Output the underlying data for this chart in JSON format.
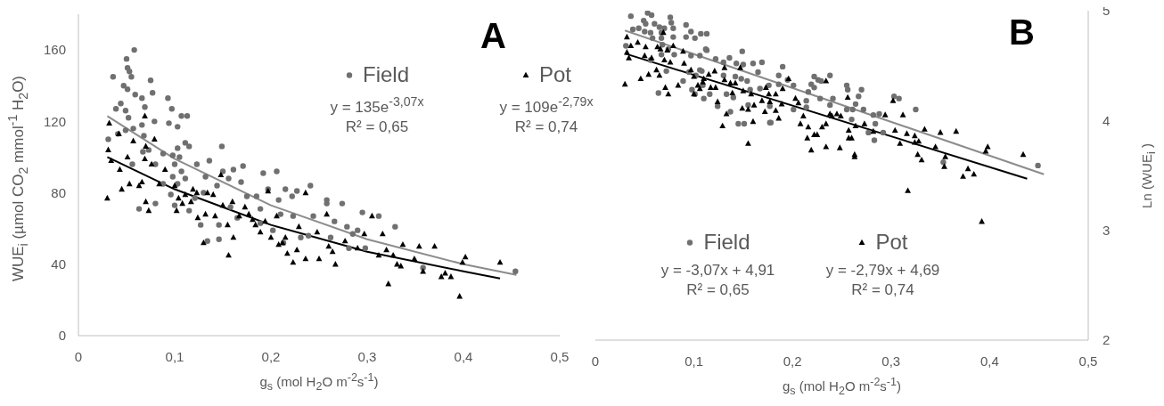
{
  "chart_data": [
    {
      "type": "scatter",
      "title": "A",
      "xlabel": "g$_{s}$ (mol H$_{2}$O m$^{-2}$s$^{-1}$)",
      "ylabel": "WUE$_{i}$ (µmol CO$_{2}$ mmol$^{-1}$ H$_{2}$O)",
      "xlim": [
        0,
        0.5
      ],
      "xticks": [
        0,
        {
          "value": 0.1,
          "label": "0,1"
        },
        {
          "value": 0.2,
          "label": "0,2"
        },
        {
          "value": 0.3,
          "label": "0,3"
        },
        {
          "value": 0.4,
          "label": "0,4"
        },
        {
          "value": 0.5,
          "label": "0,5"
        }
      ],
      "ylim": [
        0,
        180
      ],
      "yticks": [
        0,
        40,
        80,
        120,
        160
      ],
      "legend": "top right",
      "annotations": [
        "y = 135e$^{-3,07x}$",
        "R² = 0,65",
        "y = 109e$^{-2,79x}$",
        "R² = 0,74"
      ],
      "series": [
        {
          "name": "Field",
          "marker": "circle",
          "color": "#707070",
          "x": [
            0.058,
            0.05,
            0.051,
            0.053,
            0.055,
            0.036,
            0.075,
            0.047,
            0.051,
            0.093,
            0.059,
            0.066,
            0.077,
            0.039,
            0.097,
            0.069,
            0.044,
            0.049,
            0.052,
            0.107,
            0.113,
            0.079,
            0.094,
            0.066,
            0.103,
            0.049,
            0.057,
            0.041,
            0.031,
            0.068,
            0.111,
            0.115,
            0.103,
            0.149,
            0.073,
            0.088,
            0.067,
            0.098,
            0.105,
            0.08,
            0.056,
            0.1,
            0.123,
            0.136,
            0.161,
            0.171,
            0.15,
            0.192,
            0.206,
            0.107,
            0.098,
            0.111,
            0.132,
            0.156,
            0.103,
            0.088,
            0.169,
            0.144,
            0.241,
            0.197,
            0.215,
            0.227,
            0.096,
            0.13,
            0.121,
            0.175,
            0.185,
            0.208,
            0.222,
            0.258,
            0.258,
            0.274,
            0.1,
            0.115,
            0.158,
            0.189,
            0.21,
            0.223,
            0.244,
            0.266,
            0.295,
            0.312,
            0.279,
            0.329,
            0.127,
            0.146,
            0.165,
            0.189,
            0.202,
            0.239,
            0.262,
            0.285,
            0.29,
            0.298,
            0.281,
            0.063,
            0.08,
            0.134,
            0.146,
            0.358,
            0.454,
            0.213,
            0.231
          ],
          "values": [
            160,
            155,
            150,
            148,
            145,
            145,
            143,
            140,
            138,
            133,
            135,
            133,
            136,
            127,
            127,
            128,
            130,
            126,
            122,
            123,
            123,
            120,
            119,
            118,
            117,
            115,
            116,
            113,
            110,
            112,
            108,
            106,
            105,
            106,
            104,
            102,
            103,
            101,
            100,
            96,
            96,
            96,
            96,
            98,
            93,
            95,
            92,
            91,
            92,
            92,
            89,
            88,
            89,
            88,
            85,
            85,
            86,
            84,
            84,
            82,
            82,
            81,
            79,
            80,
            77,
            78,
            78,
            76,
            78,
            76,
            74,
            74,
            73,
            70,
            72,
            71,
            68,
            67,
            67,
            64,
            69,
            67,
            61,
            61,
            62,
            62,
            66,
            63,
            59,
            56,
            55,
            57,
            59,
            49,
            49,
            71,
            74,
            53,
            54,
            38,
            36,
            52,
            55
          ]
        },
        {
          "name": "Pot",
          "marker": "triangle",
          "color": "#000000",
          "x": [
            0.03,
            0.031,
            0.032,
            0.034,
            0.042,
            0.043,
            0.045,
            0.053,
            0.051,
            0.057,
            0.063,
            0.066,
            0.07,
            0.073,
            0.069,
            0.069,
            0.076,
            0.079,
            0.07,
            0.084,
            0.09,
            0.1,
            0.102,
            0.104,
            0.108,
            0.111,
            0.117,
            0.119,
            0.123,
            0.124,
            0.13,
            0.132,
            0.134,
            0.14,
            0.142,
            0.148,
            0.15,
            0.155,
            0.156,
            0.16,
            0.161,
            0.167,
            0.173,
            0.177,
            0.181,
            0.184,
            0.189,
            0.194,
            0.197,
            0.2,
            0.206,
            0.208,
            0.212,
            0.215,
            0.217,
            0.223,
            0.227,
            0.229,
            0.236,
            0.236,
            0.25,
            0.248,
            0.258,
            0.26,
            0.264,
            0.267,
            0.277,
            0.29,
            0.297,
            0.305,
            0.312,
            0.316,
            0.32,
            0.322,
            0.327,
            0.331,
            0.335,
            0.337,
            0.349,
            0.354,
            0.358,
            0.37,
            0.377,
            0.381,
            0.387,
            0.396,
            0.399,
            0.402,
            0.438
          ],
          "values": [
            77,
            104,
            119,
            98,
            113,
            93,
            82,
            85,
            100,
            109,
            84,
            86,
            75,
            70,
            123,
            99,
            96,
            110,
            106,
            85,
            93,
            84,
            70,
            77,
            74,
            79,
            75,
            82,
            80,
            66,
            52,
            68,
            80,
            79,
            67,
            90,
            73,
            62,
            45,
            75,
            55,
            67,
            72,
            68,
            65,
            62,
            58,
            64,
            81,
            55,
            67,
            51,
            52,
            55,
            46,
            41,
            48,
            61,
            80,
            43,
            43,
            58,
            68,
            50,
            47,
            40,
            53,
            49,
            57,
            67,
            45,
            57,
            48,
            29,
            45,
            40,
            39,
            51,
            43,
            50,
            36,
            50,
            33,
            35,
            33,
            22,
            41,
            44,
            41
          ]
        },
        {
          "type": "line",
          "color": "#8c8c8c",
          "x": [
            0.03,
            0.1,
            0.2,
            0.3,
            0.4,
            0.455
          ],
          "values": [
            123,
            99,
            73,
            54,
            40,
            34
          ]
        },
        {
          "type": "line",
          "color": "#000000",
          "x": [
            0.03,
            0.1,
            0.2,
            0.3,
            0.4,
            0.438
          ],
          "values": [
            100,
            82,
            62,
            47,
            36,
            32
          ]
        }
      ]
    },
    {
      "type": "scatter",
      "title": "B",
      "xlabel": "g$_{s}$ (mol H$_{2}$O m$^{-2}$s$^{-1}$)",
      "y2label": "Ln (WUE$_{i}$ )",
      "xlim": [
        0,
        0.5
      ],
      "xticks": [
        0,
        {
          "value": 0.1,
          "label": "0,1"
        },
        {
          "value": 0.2,
          "label": "0,2"
        },
        {
          "value": 0.3,
          "label": "0,3"
        },
        {
          "value": 0.4,
          "label": "0,4"
        },
        {
          "value": 0.5,
          "label": "0,5"
        }
      ],
      "y2lim": [
        2,
        5
      ],
      "y2ticks": [
        2,
        3,
        4,
        5
      ],
      "legend": "bottom",
      "annotations": [
        "y = -3,07x + 4,91",
        "R² = 0,65",
        "y = -2,79x + 4,69",
        "R² = 0,74"
      ],
      "series": [
        {
          "name": "Field",
          "marker": "circle",
          "axis": "y2",
          "color": "#707070",
          "x": [
            0.036,
            0.053,
            0.057,
            0.049,
            0.051,
            0.06,
            0.065,
            0.07,
            0.076,
            0.077,
            0.038,
            0.044,
            0.05,
            0.056,
            0.067,
            0.079,
            0.092,
            0.097,
            0.092,
            0.101,
            0.107,
            0.113,
            0.058,
            0.067,
            0.079,
            0.031,
            0.068,
            0.074,
            0.112,
            0.113,
            0.067,
            0.08,
            0.097,
            0.106,
            0.056,
            0.122,
            0.136,
            0.13,
            0.143,
            0.15,
            0.149,
            0.16,
            0.169,
            0.106,
            0.108,
            0.072,
            0.095,
            0.102,
            0.13,
            0.142,
            0.148,
            0.154,
            0.165,
            0.089,
            0.109,
            0.098,
            0.101,
            0.116,
            0.11,
            0.064,
            0.133,
            0.14,
            0.157,
            0.167,
            0.176,
            0.19,
            0.124,
            0.137,
            0.145,
            0.151,
            0.177,
            0.155,
            0.186,
            0.195,
            0.186,
            0.201,
            0.222,
            0.226,
            0.229,
            0.238,
            0.219,
            0.222,
            0.216,
            0.214,
            0.214,
            0.201,
            0.177,
            0.178,
            0.228,
            0.241,
            0.238,
            0.255,
            0.256,
            0.27,
            0.267,
            0.264,
            0.261,
            0.255,
            0.272,
            0.26,
            0.282,
            0.288,
            0.284,
            0.277,
            0.283,
            0.292,
            0.303,
            0.308,
            0.325,
            0.353,
            0.449
          ],
          "values": [
            4.95,
            4.98,
            4.96,
            4.91,
            4.88,
            4.88,
            4.85,
            4.84,
            4.94,
            4.89,
            4.83,
            4.84,
            4.81,
            4.8,
            4.8,
            4.84,
            4.87,
            4.81,
            4.76,
            4.75,
            4.79,
            4.79,
            4.75,
            4.75,
            4.76,
            4.68,
            4.69,
            4.65,
            4.65,
            4.64,
            4.6,
            4.6,
            4.59,
            4.59,
            4.55,
            4.56,
            4.57,
            4.53,
            4.52,
            4.51,
            4.63,
            4.52,
            4.53,
            4.46,
            4.45,
            4.45,
            4.44,
            4.41,
            4.41,
            4.4,
            4.38,
            4.36,
            4.44,
            4.36,
            4.32,
            4.28,
            4.24,
            4.24,
            4.2,
            4.25,
            4.24,
            4.21,
            4.28,
            4.29,
            4.32,
            4.49,
            4.13,
            4.08,
            3.97,
            3.97,
            3.98,
            4.14,
            4.41,
            4.37,
            4.33,
            4.32,
            4.4,
            4.37,
            4.36,
            4.41,
            4.33,
            4.3,
            4.26,
            4.18,
            4.12,
            4.1,
            4.13,
            3.98,
            4.2,
            4.2,
            4.14,
            4.32,
            4.28,
            4.28,
            4.22,
            4.15,
            4.1,
            4.1,
            4.1,
            4.01,
            4.05,
            4.06,
            3.97,
            3.89,
            3.82,
            3.89,
            4.22,
            4.2,
            4.1,
            3.62,
            3.59
          ]
        },
        {
          "name": "Pot",
          "marker": "triangle",
          "axis": "y2",
          "color": "#000000",
          "x": [
            0.03,
            0.032,
            0.032,
            0.036,
            0.034,
            0.043,
            0.046,
            0.05,
            0.054,
            0.051,
            0.057,
            0.062,
            0.063,
            0.065,
            0.066,
            0.069,
            0.07,
            0.071,
            0.073,
            0.074,
            0.076,
            0.079,
            0.084,
            0.089,
            0.09,
            0.097,
            0.1,
            0.1,
            0.104,
            0.106,
            0.109,
            0.11,
            0.115,
            0.117,
            0.121,
            0.122,
            0.124,
            0.129,
            0.131,
            0.131,
            0.133,
            0.137,
            0.139,
            0.142,
            0.147,
            0.149,
            0.15,
            0.155,
            0.155,
            0.158,
            0.16,
            0.161,
            0.169,
            0.172,
            0.173,
            0.176,
            0.177,
            0.183,
            0.186,
            0.189,
            0.196,
            0.183,
            0.19,
            0.203,
            0.206,
            0.211,
            0.208,
            0.215,
            0.219,
            0.216,
            0.222,
            0.225,
            0.234,
            0.23,
            0.234,
            0.234,
            0.238,
            0.24,
            0.245,
            0.249,
            0.248,
            0.256,
            0.257,
            0.257,
            0.26,
            0.263,
            0.263,
            0.264,
            0.273,
            0.282,
            0.294,
            0.304,
            0.302,
            0.309,
            0.312,
            0.316,
            0.317,
            0.324,
            0.324,
            0.328,
            0.327,
            0.331,
            0.334,
            0.345,
            0.35,
            0.354,
            0.355,
            0.366,
            0.373,
            0.378,
            0.384,
            0.392,
            0.396,
            0.398,
            0.434
          ],
          "values": [
            4.33,
            4.76,
            4.62,
            4.68,
            4.57,
            4.71,
            4.38,
            4.59,
            4.42,
            4.67,
            4.57,
            4.46,
            4.67,
            4.41,
            4.65,
            4.8,
            4.55,
            4.3,
            4.64,
            4.24,
            4.53,
            4.68,
            4.32,
            4.63,
            4.52,
            4.46,
            4.4,
            4.24,
            4.32,
            4.29,
            4.35,
            4.38,
            4.42,
            4.3,
            4.45,
            4.3,
            4.17,
            3.95,
            4.48,
            4.37,
            4.06,
            4.34,
            4.25,
            4.34,
            4.48,
            4.11,
            4.27,
            3.79,
            4.1,
            4.24,
            3.99,
            4.14,
            4.18,
            4.08,
            4.3,
            4.24,
            4.17,
            4.09,
            4.02,
            4.15,
            4.38,
            4.24,
            4.29,
            4.2,
            4.16,
            4.04,
            3.97,
            3.84,
            3.73,
            3.94,
            3.87,
            3.87,
            4.36,
            3.94,
            3.97,
            3.76,
            4.06,
            4.04,
            4.06,
            4.04,
            3.75,
            4.21,
            3.91,
            3.84,
            3.84,
            3.69,
            3.67,
            3.95,
            3.97,
            3.9,
            4.05,
            3.91,
            4.18,
            3.79,
            4.05,
            3.88,
            3.36,
            3.86,
            3.8,
            3.81,
            3.69,
            3.64,
            3.92,
            3.76,
            3.89,
            3.58,
            3.67,
            3.9,
            3.49,
            3.56,
            3.51,
            3.08,
            3.72,
            3.76,
            3.69
          ]
        },
        {
          "type": "line",
          "axis": "y2",
          "color": "#8c8c8c",
          "x": [
            0.03,
            0.455
          ],
          "values": [
            4.82,
            3.51
          ]
        },
        {
          "type": "line",
          "axis": "y2",
          "color": "#000000",
          "x": [
            0.03,
            0.438
          ],
          "values": [
            4.61,
            3.47
          ]
        }
      ]
    }
  ]
}
